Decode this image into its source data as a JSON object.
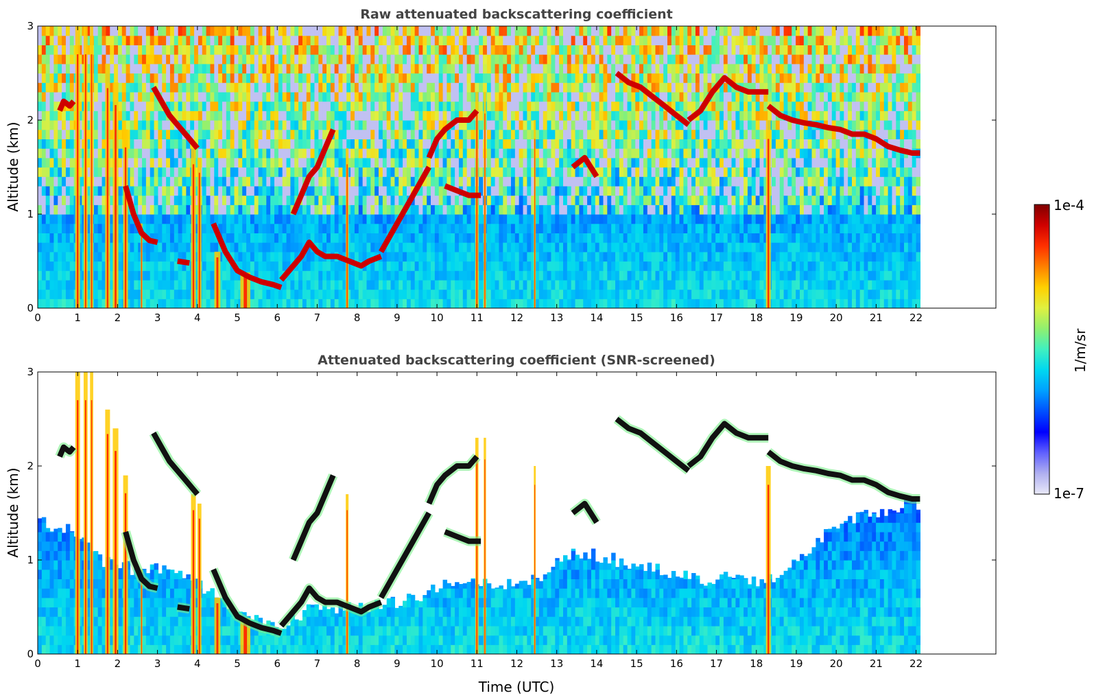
{
  "chart_data": [
    {
      "type": "heatmap",
      "title": "Raw attenuated backscattering coefficient",
      "xlabel": "",
      "ylabel": "Altitude (km)",
      "xlim": [
        0,
        24
      ],
      "ylim": [
        0,
        3
      ],
      "xticks": [
        0,
        1,
        2,
        3,
        4,
        5,
        6,
        7,
        8,
        9,
        10,
        11,
        12,
        13,
        14,
        15,
        16,
        17,
        18,
        19,
        20,
        21,
        22
      ],
      "yticks": [
        0,
        1,
        2,
        3
      ],
      "data_extent_x": [
        0,
        22.1
      ],
      "screened": false,
      "cloud_layers": [
        {
          "x": [
            0.55,
            0.65,
            0.8,
            0.9
          ],
          "y": [
            2.1,
            2.2,
            2.15,
            2.2
          ]
        },
        {
          "x": [
            2.2,
            2.4,
            2.6,
            2.8,
            3.0
          ],
          "y": [
            1.3,
            1.0,
            0.8,
            0.72,
            0.7
          ]
        },
        {
          "x": [
            2.9,
            3.1,
            3.3,
            3.5,
            3.7,
            3.9,
            4.0
          ],
          "y": [
            2.35,
            2.2,
            2.05,
            1.95,
            1.85,
            1.75,
            1.7
          ]
        },
        {
          "x": [
            3.5,
            3.8
          ],
          "y": [
            0.5,
            0.48
          ]
        },
        {
          "x": [
            4.4,
            4.7,
            5.0,
            5.3,
            5.6,
            5.9,
            6.1
          ],
          "y": [
            0.9,
            0.6,
            0.4,
            0.33,
            0.28,
            0.25,
            0.22
          ]
        },
        {
          "x": [
            6.1,
            6.4,
            6.6,
            6.8,
            7.0,
            7.2,
            7.5,
            7.8,
            8.1,
            8.3,
            8.6
          ],
          "y": [
            0.3,
            0.45,
            0.55,
            0.7,
            0.6,
            0.55,
            0.55,
            0.5,
            0.45,
            0.5,
            0.55
          ]
        },
        {
          "x": [
            6.4,
            6.6,
            6.8,
            7.0,
            7.2,
            7.4
          ],
          "y": [
            1.0,
            1.2,
            1.4,
            1.5,
            1.7,
            1.9
          ]
        },
        {
          "x": [
            8.6,
            9.0,
            9.4,
            9.8
          ],
          "y": [
            0.6,
            0.9,
            1.2,
            1.5
          ]
        },
        {
          "x": [
            9.8,
            10.0,
            10.2,
            10.5,
            10.8,
            11.0
          ],
          "y": [
            1.6,
            1.8,
            1.9,
            2.0,
            2.0,
            2.1
          ]
        },
        {
          "x": [
            10.2,
            10.5,
            10.8,
            11.1
          ],
          "y": [
            1.3,
            1.25,
            1.2,
            1.2
          ]
        },
        {
          "x": [
            13.4,
            13.7,
            14.0
          ],
          "y": [
            1.5,
            1.6,
            1.4
          ]
        },
        {
          "x": [
            14.5,
            14.8,
            15.1,
            15.4,
            15.7,
            16.0,
            16.3
          ],
          "y": [
            2.5,
            2.4,
            2.35,
            2.25,
            2.15,
            2.05,
            1.95
          ]
        },
        {
          "x": [
            16.3,
            16.6,
            16.9,
            17.2,
            17.5,
            17.8,
            18.1,
            18.3
          ],
          "y": [
            2.0,
            2.1,
            2.3,
            2.45,
            2.35,
            2.3,
            2.3,
            2.3
          ]
        },
        {
          "x": [
            18.3,
            18.6,
            18.9,
            19.2,
            19.5,
            19.8,
            20.1,
            20.4,
            20.7,
            21.0,
            21.3,
            21.6,
            21.9,
            22.1
          ],
          "y": [
            2.15,
            2.05,
            2.0,
            1.97,
            1.95,
            1.92,
            1.9,
            1.85,
            1.85,
            1.8,
            1.72,
            1.68,
            1.65,
            1.65
          ]
        }
      ],
      "precipitation_columns": [
        {
          "x": 1.0,
          "top": 3.0,
          "w": 0.12
        },
        {
          "x": 1.2,
          "top": 3.0,
          "w": 0.1
        },
        {
          "x": 1.35,
          "top": 3.0,
          "w": 0.08
        },
        {
          "x": 1.75,
          "top": 2.6,
          "w": 0.12
        },
        {
          "x": 1.95,
          "top": 2.4,
          "w": 0.14
        },
        {
          "x": 2.2,
          "top": 1.9,
          "w": 0.12
        },
        {
          "x": 2.6,
          "top": 0.9,
          "w": 0.05
        },
        {
          "x": 3.9,
          "top": 1.7,
          "w": 0.12
        },
        {
          "x": 4.05,
          "top": 1.6,
          "w": 0.1
        },
        {
          "x": 4.5,
          "top": 0.6,
          "w": 0.15
        },
        {
          "x": 5.2,
          "top": 0.38,
          "w": 0.25
        },
        {
          "x": 7.75,
          "top": 1.7,
          "w": 0.07
        },
        {
          "x": 11.0,
          "top": 2.3,
          "w": 0.08
        },
        {
          "x": 11.2,
          "top": 2.3,
          "w": 0.06
        },
        {
          "x": 12.45,
          "top": 2.0,
          "w": 0.05
        },
        {
          "x": 18.3,
          "top": 2.0,
          "w": 0.12
        }
      ],
      "background_top_value": 0.55
    },
    {
      "type": "heatmap",
      "title": "Attenuated backscattering coefficient (SNR-screened)",
      "xlabel": "Time (UTC)",
      "ylabel": "Altitude (km)",
      "xlim": [
        0,
        24
      ],
      "ylim": [
        0,
        3
      ],
      "xticks": [
        0,
        1,
        2,
        3,
        4,
        5,
        6,
        7,
        8,
        9,
        10,
        11,
        12,
        13,
        14,
        15,
        16,
        17,
        18,
        19,
        20,
        21,
        22
      ],
      "yticks": [
        0,
        1,
        2,
        3
      ],
      "data_extent_x": [
        0,
        22.1
      ],
      "screened": true,
      "noise_top_profile": {
        "x": [
          0,
          0.5,
          1,
          1.5,
          2,
          2.5,
          3,
          3.5,
          4,
          4.5,
          5,
          5.5,
          6,
          6.5,
          7,
          7.5,
          8,
          8.5,
          9,
          9.5,
          10,
          10.5,
          11,
          11.5,
          12,
          12.5,
          13,
          13.5,
          14,
          14.5,
          15,
          15.5,
          16,
          16.5,
          17,
          17.5,
          18,
          18.5,
          19,
          19.5,
          20,
          20.5,
          21,
          21.5,
          22,
          22.1
        ],
        "y": [
          1.4,
          1.35,
          1.3,
          1.0,
          0.95,
          0.9,
          0.9,
          0.85,
          0.75,
          0.6,
          0.45,
          0.35,
          0.3,
          0.4,
          0.5,
          0.5,
          0.5,
          0.5,
          0.55,
          0.6,
          0.7,
          0.75,
          0.75,
          0.7,
          0.75,
          0.8,
          0.95,
          1.1,
          1.05,
          1.0,
          0.95,
          0.9,
          0.85,
          0.8,
          0.8,
          0.8,
          0.75,
          0.8,
          1.0,
          1.2,
          1.4,
          1.45,
          1.5,
          1.55,
          1.6,
          1.6
        ]
      }
    }
  ],
  "colorbar": {
    "label": "1/m/sr",
    "max_label": "1e-4",
    "min_label": "1e-7",
    "colors": [
      "#e8e8f8",
      "#b0b0f0",
      "#6060ff",
      "#0000ff",
      "#0050ff",
      "#00a0ff",
      "#00d8f0",
      "#40f0c0",
      "#90f070",
      "#e0f040",
      "#ffd000",
      "#ff8000",
      "#ff3000",
      "#d00000",
      "#800000"
    ]
  }
}
